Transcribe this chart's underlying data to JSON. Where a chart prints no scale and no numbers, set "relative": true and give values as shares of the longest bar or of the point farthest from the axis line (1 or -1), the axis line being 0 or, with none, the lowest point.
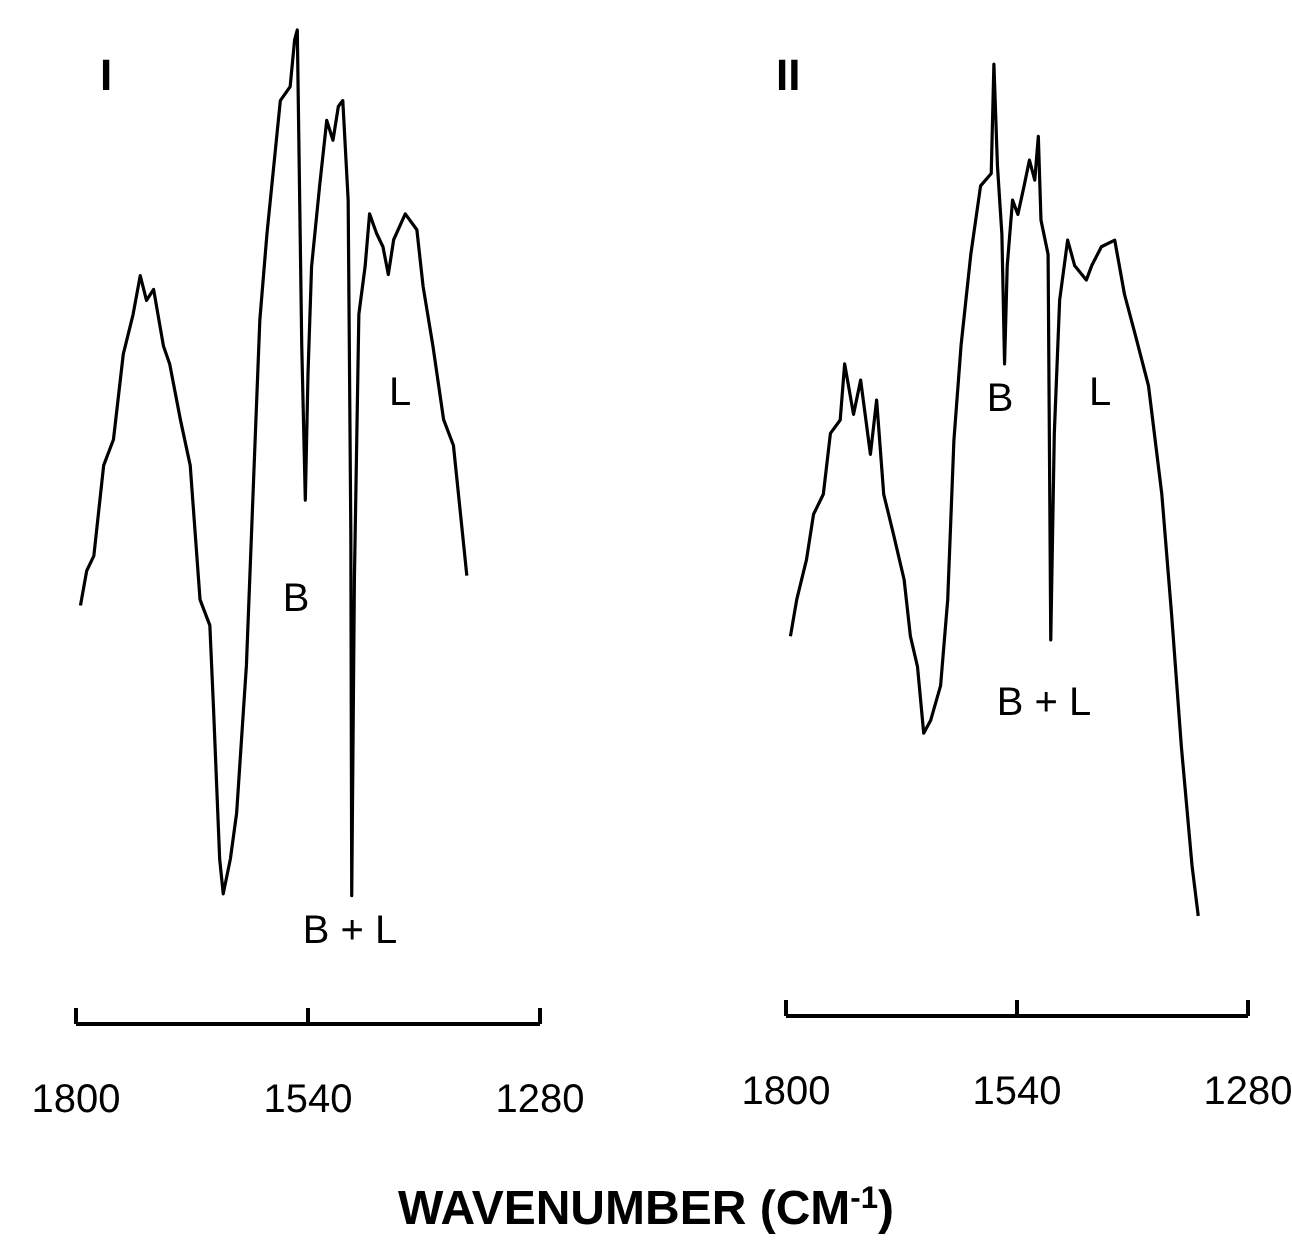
{
  "chart_data": [
    {
      "type": "line",
      "relative": true,
      "xlabel": "WAVENUMBER (CM$^{-1}$)",
      "xlim": [
        1800,
        1280
      ],
      "xticks": [
        1800,
        1540,
        1280
      ],
      "grid": false,
      "marker": "none",
      "line_style": "solid",
      "annotations": [
        "I",
        "B",
        "L",
        "B + L"
      ],
      "series": [
        {
          "color": "#000000",
          "x": [
            1795,
            1788,
            1780,
            1769,
            1758,
            1747,
            1736,
            1728,
            1721,
            1713,
            1702,
            1695,
            1683,
            1672,
            1661,
            1650,
            1646,
            1639,
            1635,
            1627,
            1620,
            1609,
            1601,
            1594,
            1586,
            1571,
            1560,
            1555,
            1552,
            1551,
            1547,
            1543,
            1540,
            1536,
            1527,
            1519,
            1512,
            1506,
            1501,
            1495,
            1492,
            1491,
            1488,
            1483,
            1476,
            1471,
            1463,
            1456,
            1450,
            1444,
            1431,
            1418,
            1411,
            1400,
            1388,
            1377,
            1370,
            1362
          ],
          "values": [
            0.421,
            0.456,
            0.471,
            0.562,
            0.588,
            0.674,
            0.714,
            0.753,
            0.728,
            0.739,
            0.682,
            0.664,
            0.608,
            0.562,
            0.427,
            0.401,
            0.32,
            0.166,
            0.131,
            0.166,
            0.212,
            0.361,
            0.547,
            0.708,
            0.795,
            0.929,
            0.943,
            0.99,
            1,
            0.936,
            0.682,
            0.527,
            0.654,
            0.762,
            0.843,
            0.909,
            0.889,
            0.923,
            0.929,
            0.829,
            0.493,
            0.129,
            0.447,
            0.714,
            0.762,
            0.815,
            0.795,
            0.782,
            0.754,
            0.789,
            0.815,
            0.799,
            0.742,
            0.682,
            0.608,
            0.582,
            0.521,
            0.451
          ]
        }
      ]
    },
    {
      "type": "line",
      "relative": true,
      "xlim": [
        1800,
        1280
      ],
      "xticks": [
        1800,
        1540,
        1280
      ],
      "grid": false,
      "marker": "none",
      "line_style": "solid",
      "annotations": [
        "II",
        "B",
        "L",
        "B + L"
      ],
      "series": [
        {
          "color": "#000000",
          "x": [
            1795,
            1788,
            1777,
            1769,
            1758,
            1750,
            1739,
            1734,
            1724,
            1716,
            1705,
            1698,
            1690,
            1679,
            1667,
            1660,
            1652,
            1645,
            1637,
            1626,
            1618,
            1611,
            1603,
            1592,
            1581,
            1569,
            1566,
            1562,
            1557,
            1554,
            1551,
            1545,
            1539,
            1532,
            1526,
            1520,
            1516,
            1513,
            1505,
            1502,
            1498,
            1492,
            1483,
            1475,
            1462,
            1456,
            1445,
            1430,
            1419,
            1407,
            1392,
            1377,
            1366,
            1355,
            1343,
            1336
          ],
          "values": [
            0.399,
            0.437,
            0.479,
            0.527,
            0.548,
            0.612,
            0.626,
            0.685,
            0.632,
            0.668,
            0.59,
            0.647,
            0.548,
            0.506,
            0.458,
            0.399,
            0.367,
            0.297,
            0.311,
            0.347,
            0.437,
            0.605,
            0.704,
            0.8,
            0.872,
            0.885,
            1,
            0.893,
            0.821,
            0.685,
            0.788,
            0.857,
            0.842,
            0.872,
            0.899,
            0.878,
            0.924,
            0.836,
            0.8,
            0.395,
            0.612,
            0.752,
            0.815,
            0.788,
            0.773,
            0.788,
            0.808,
            0.815,
            0.758,
            0.716,
            0.662,
            0.548,
            0.422,
            0.283,
            0.158,
            0.105
          ]
        }
      ]
    }
  ]
}
